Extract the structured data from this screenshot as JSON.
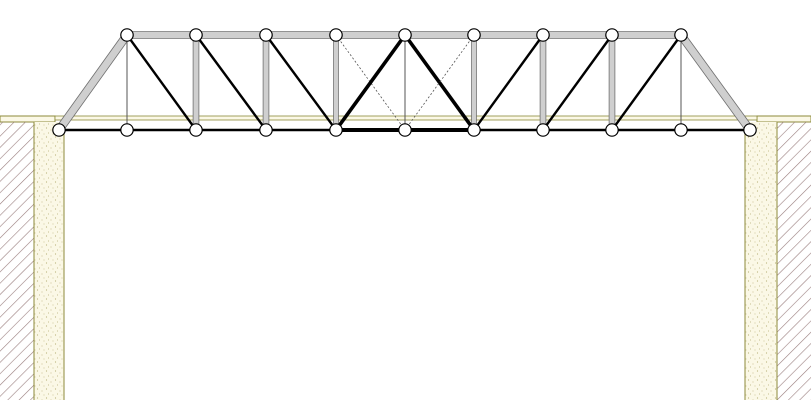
{
  "colors": {
    "background": "#ffffff",
    "joint_fill": "#ffffff",
    "joint_stroke": "#000000",
    "compression_member": "#cfcfcf",
    "compression_outline": "#6f6f6f",
    "tension_member": "#000000",
    "zero_force_member": "#555555",
    "ground_fill": "#fbf8e6",
    "ground_speckle": "#b9b07a",
    "ground_edge": "#8c8a3a",
    "abutment_hatch": "#9a7e7e"
  },
  "truss": {
    "panels": 10,
    "top_chord_joints": 9,
    "bottom_chord_joints": 11,
    "supports": [
      "pinned",
      "roller"
    ]
  }
}
